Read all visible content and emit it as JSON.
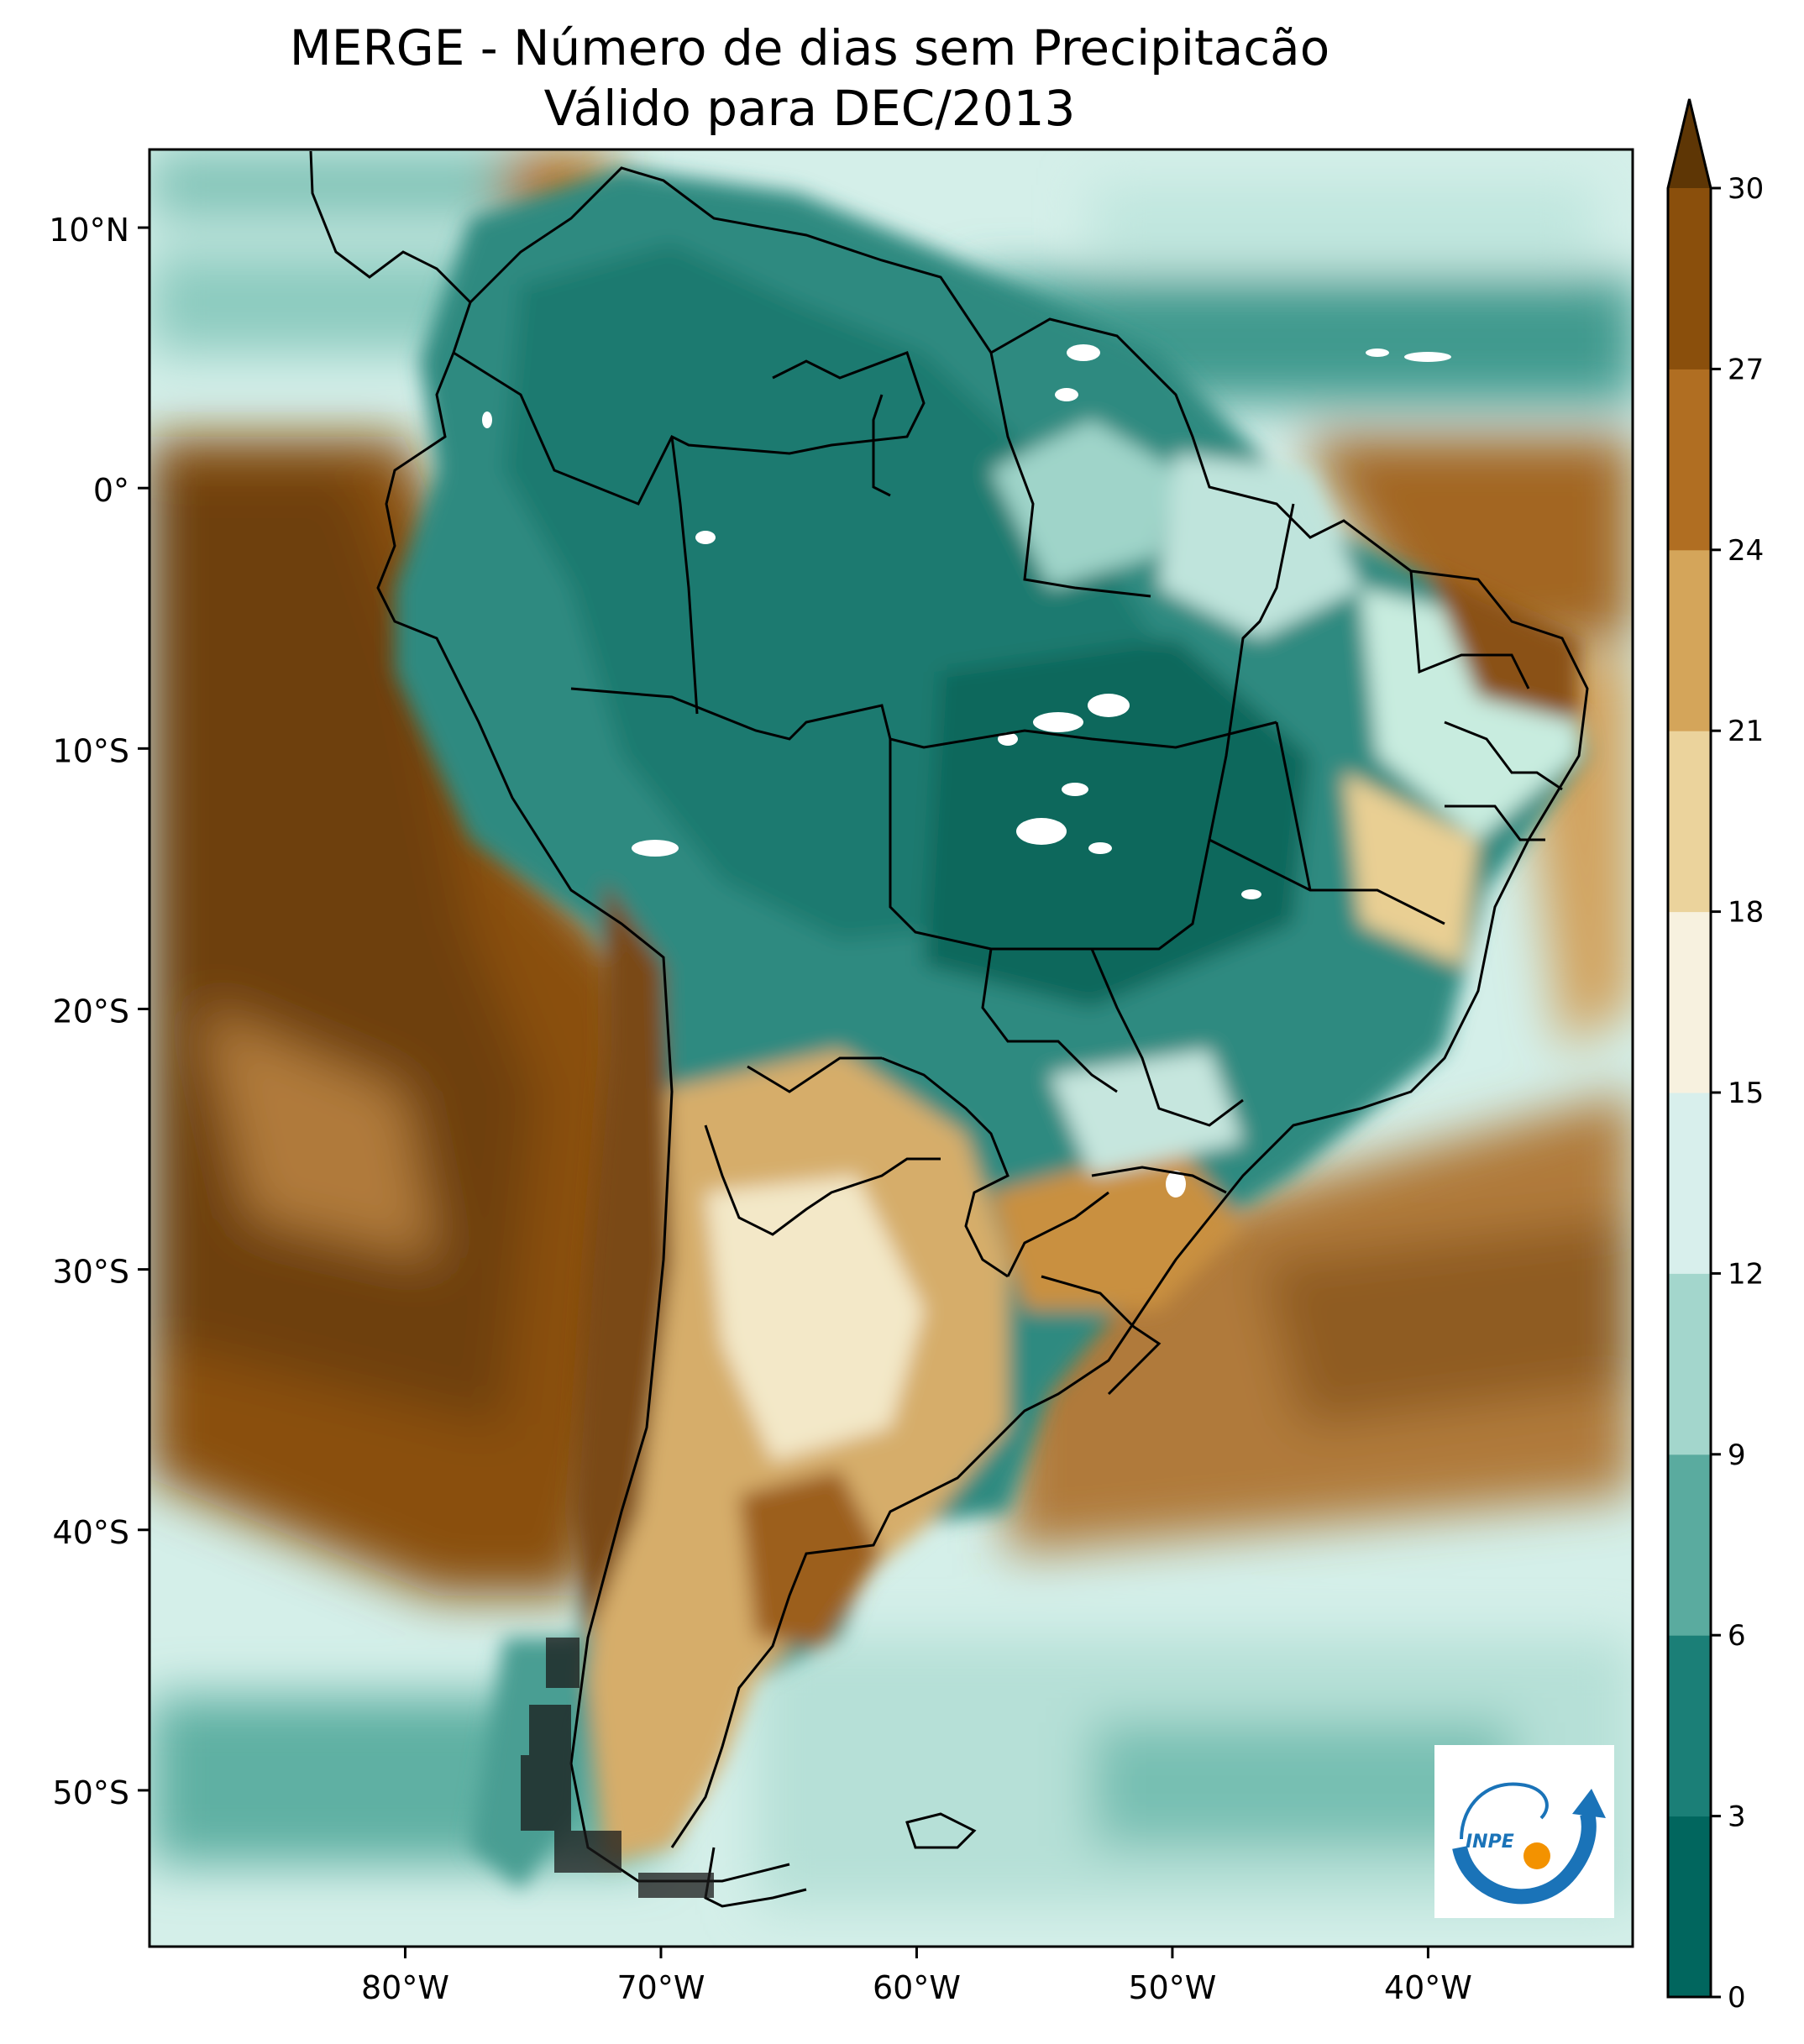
{
  "title": {
    "line1": "MERGE - Número de dias sem Precipitacão",
    "line2": "Válido para DEC/2013"
  },
  "map": {
    "lat_ticks": [
      {
        "value": 10,
        "label": "10°N"
      },
      {
        "value": 0,
        "label": "0°"
      },
      {
        "value": -10,
        "label": "10°S"
      },
      {
        "value": -20,
        "label": "20°S"
      },
      {
        "value": -30,
        "label": "30°S"
      },
      {
        "value": -40,
        "label": "40°S"
      },
      {
        "value": -50,
        "label": "50°S"
      }
    ],
    "lon_ticks": [
      {
        "value": -80,
        "label": "80°W"
      },
      {
        "value": -70,
        "label": "70°W"
      },
      {
        "value": -60,
        "label": "60°W"
      },
      {
        "value": -50,
        "label": "50°W"
      },
      {
        "value": -40,
        "label": "40°W"
      }
    ],
    "extent": {
      "lon": [
        -90,
        -32
      ],
      "lat": [
        -56,
        13
      ]
    }
  },
  "colorbar": {
    "levels": [
      0,
      3,
      6,
      9,
      12,
      15,
      18,
      21,
      24,
      27,
      30
    ],
    "labels": [
      "0",
      "3",
      "6",
      "9",
      "12",
      "15",
      "18",
      "21",
      "24",
      "27",
      "30"
    ],
    "colors": [
      "#01665e",
      "#1b7f77",
      "#5aab9f",
      "#a3d6cc",
      "#d8efec",
      "#f7f1df",
      "#ebd39c",
      "#d4a55a",
      "#b06e22",
      "#8a4f0c",
      "#5e3605"
    ],
    "extend": "max"
  },
  "logo": {
    "text": "INPE",
    "ring_color": "#1a73b8",
    "dot_color": "#f39200"
  }
}
